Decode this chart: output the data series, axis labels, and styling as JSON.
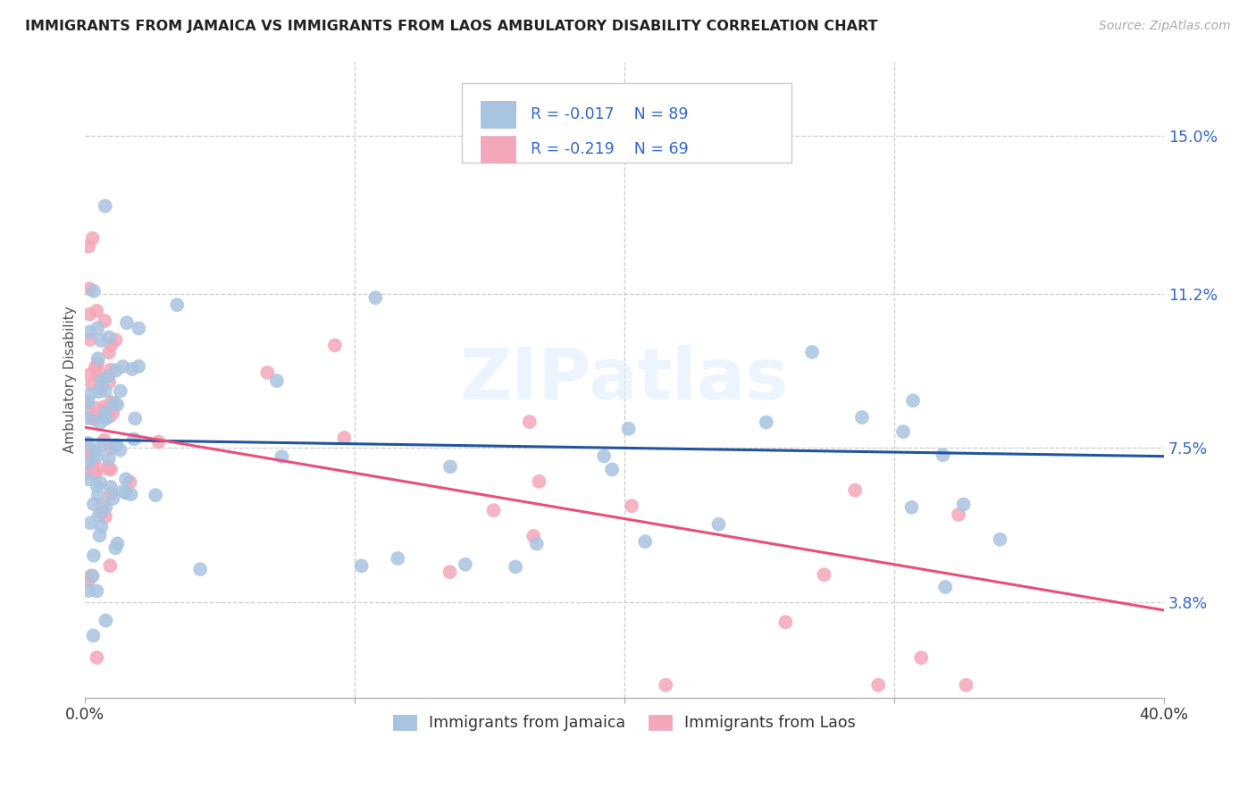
{
  "title": "IMMIGRANTS FROM JAMAICA VS IMMIGRANTS FROM LAOS AMBULATORY DISABILITY CORRELATION CHART",
  "source": "Source: ZipAtlas.com",
  "ylabel": "Ambulatory Disability",
  "ytick_labels": [
    "15.0%",
    "11.2%",
    "7.5%",
    "3.8%"
  ],
  "ytick_values": [
    0.15,
    0.112,
    0.075,
    0.038
  ],
  "xlim": [
    0.0,
    0.4
  ],
  "ylim": [
    0.015,
    0.168
  ],
  "color_jamaica": "#a8c4e0",
  "color_laos": "#f4a7b9",
  "line_color_jamaica": "#2255a0",
  "line_color_laos": "#e8507a",
  "text_color_blue": "#3366cc",
  "watermark": "ZIPatlas",
  "legend_r1": "R = -0.017",
  "legend_n1": "N = 89",
  "legend_r2": "R = -0.219",
  "legend_n2": "N = 69",
  "jamaica_label": "Immigrants from Jamaica",
  "laos_label": "Immigrants from Laos"
}
